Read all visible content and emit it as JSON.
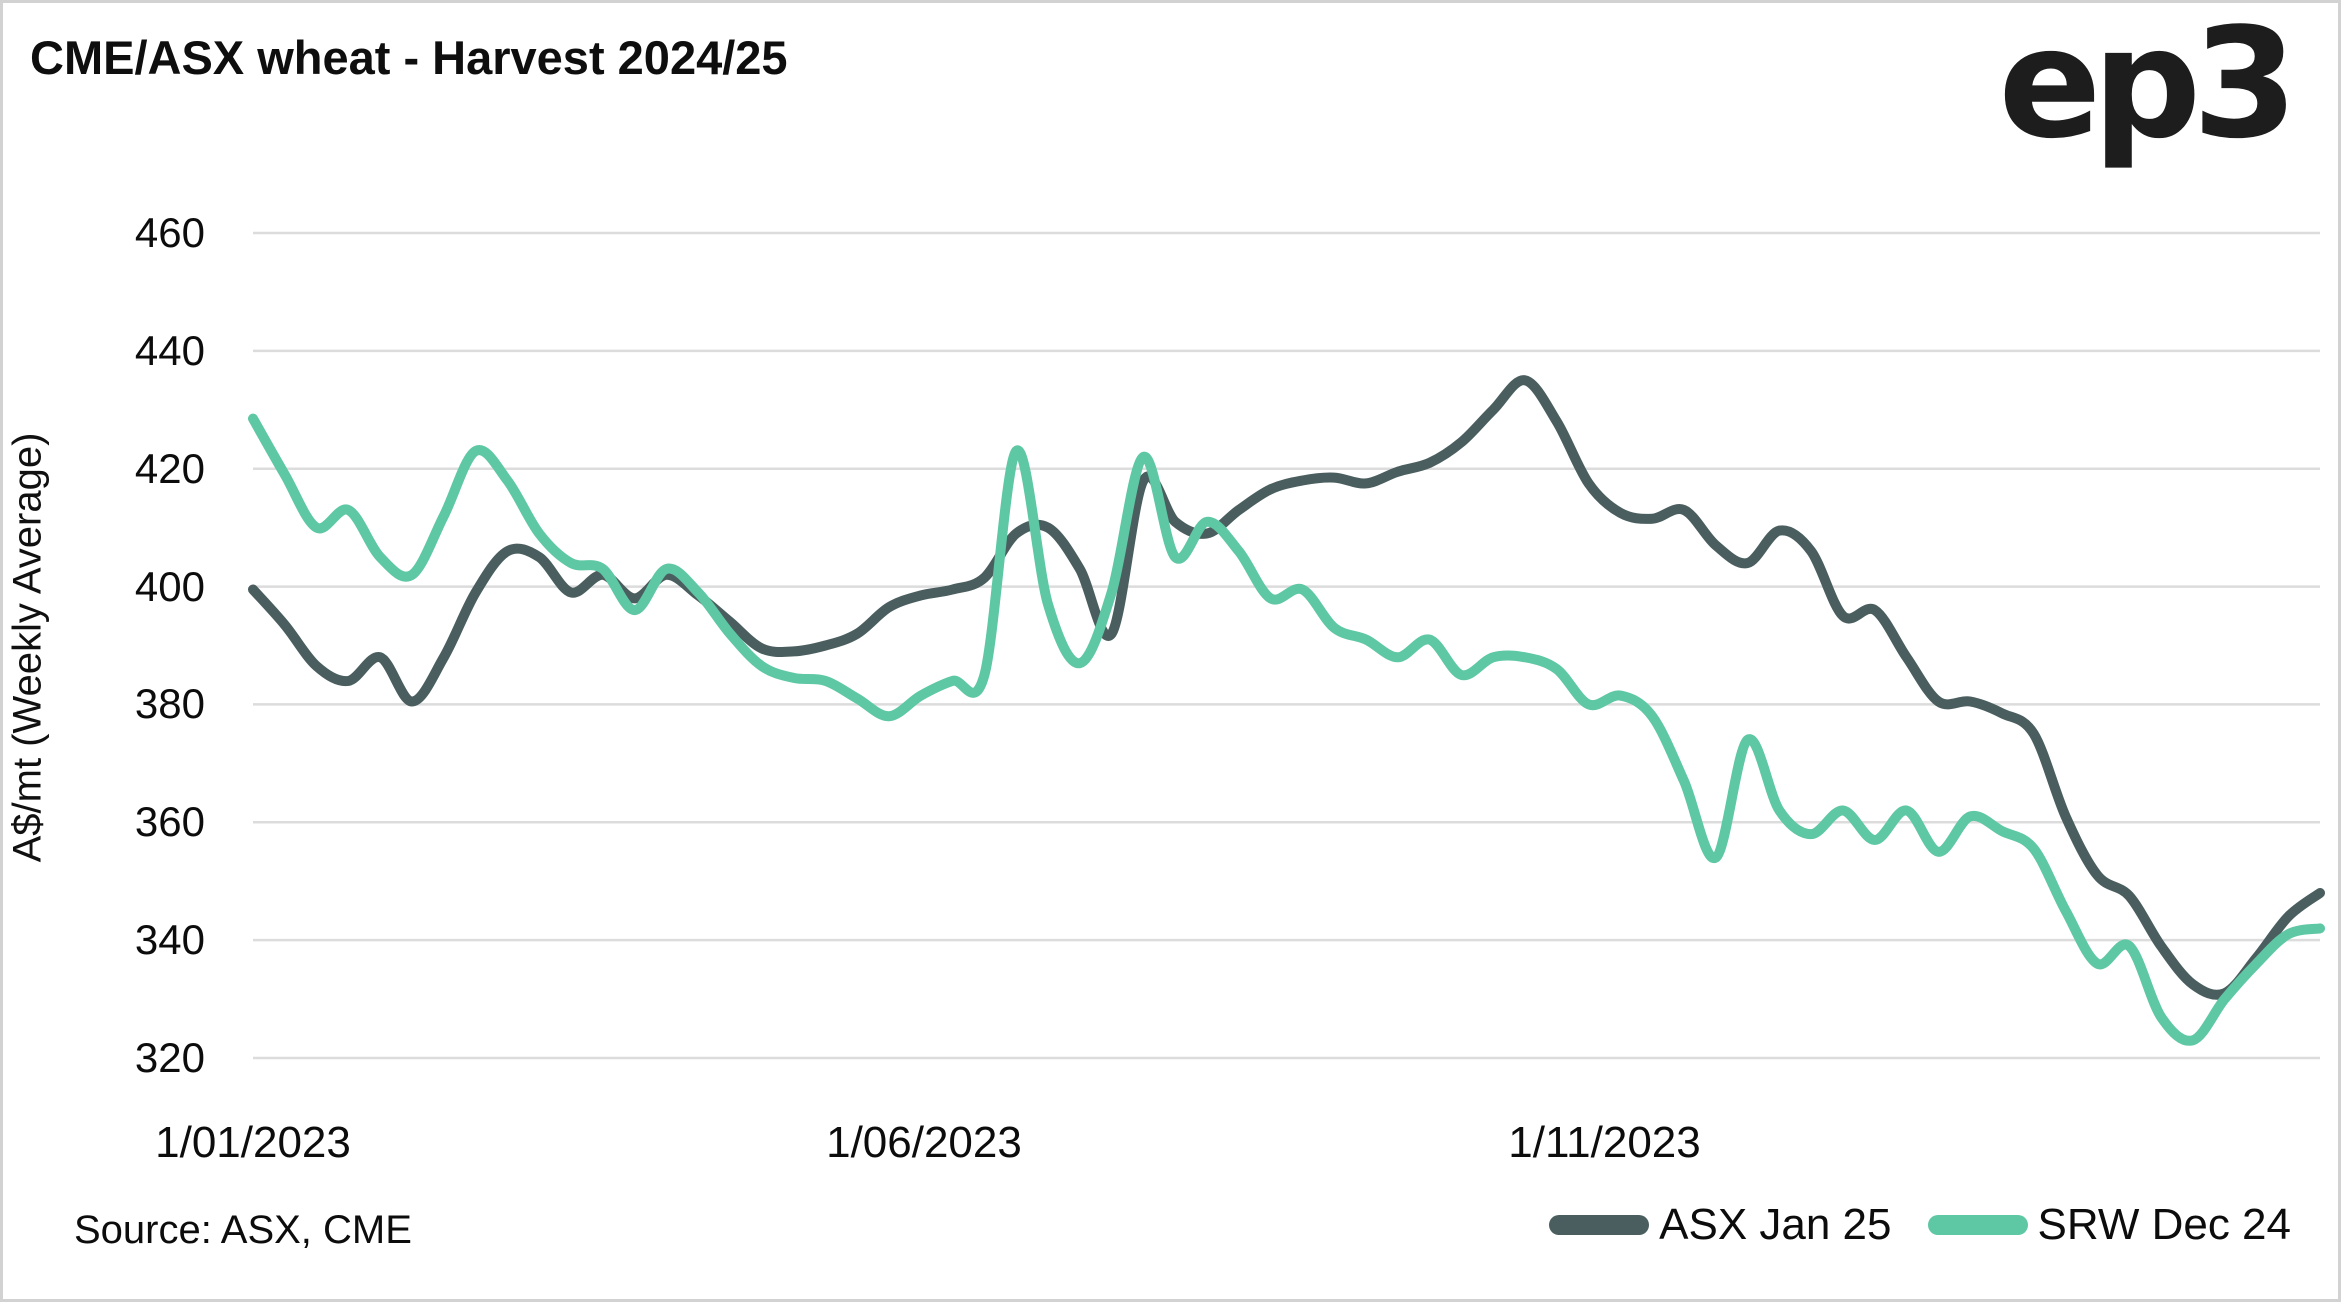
{
  "header": {
    "title": "CME/ASX wheat - Harvest 2024/25",
    "logo_text": "ep3"
  },
  "footer": {
    "source": "Source: ASX, CME"
  },
  "chart_data": {
    "type": "line",
    "title": "CME/ASX wheat - Harvest 2024/25",
    "xlabel": "",
    "ylabel": "A$/mt (Weekly Average)",
    "ylim": [
      320,
      460
    ],
    "yticks": [
      460,
      440,
      420,
      400,
      380,
      360,
      340,
      320
    ],
    "xticks": [
      {
        "label": "1/01/2023",
        "week": 0
      },
      {
        "label": "1/06/2023",
        "week": 21.1
      },
      {
        "label": "1/11/2023",
        "week": 42.5
      }
    ],
    "x_unit": "weekly average points, week 0 = 1/01/2023, ~66 weeks through early April 2024",
    "grid": "horizontal",
    "legend_position": "bottom-right",
    "gridline_color": "#dcdcdc",
    "series": [
      {
        "name": "ASX Jan 25",
        "color": "#4b5e5f",
        "values": [
          399.5,
          393.5,
          386.5,
          384,
          388,
          380.5,
          388,
          399,
          406,
          405,
          399,
          402,
          398,
          402,
          398.5,
          394,
          389.5,
          389,
          390,
          392,
          396.5,
          398.5,
          399.5,
          401.5,
          409,
          410,
          403,
          392,
          418,
          411,
          409,
          413,
          416.5,
          418,
          418.5,
          417.5,
          419.5,
          421,
          424.5,
          430,
          435,
          428,
          417.5,
          412.5,
          411.5,
          413,
          407,
          404,
          409.5,
          406,
          395,
          396,
          388,
          380.5,
          380.5,
          378.5,
          375,
          361,
          351,
          347.5,
          339,
          332.5,
          331,
          337,
          344,
          348
        ]
      },
      {
        "name": "SRW Dec 24",
        "color": "#5ec7a3",
        "values": [
          428.5,
          419,
          410,
          413,
          405,
          402,
          412,
          423,
          418,
          409,
          404,
          403,
          396,
          403,
          399,
          392,
          386.5,
          384.5,
          384,
          381,
          378,
          381.5,
          384,
          385,
          423,
          397,
          387,
          399,
          422,
          405,
          411,
          406,
          398,
          399.5,
          393,
          391,
          388,
          391,
          385,
          388,
          388,
          386,
          380,
          381.5,
          378,
          367,
          354,
          374,
          362,
          358,
          362,
          357,
          362,
          355,
          361,
          358.5,
          355.5,
          345,
          336,
          339,
          327,
          323,
          330,
          336,
          341,
          342
        ]
      }
    ]
  }
}
